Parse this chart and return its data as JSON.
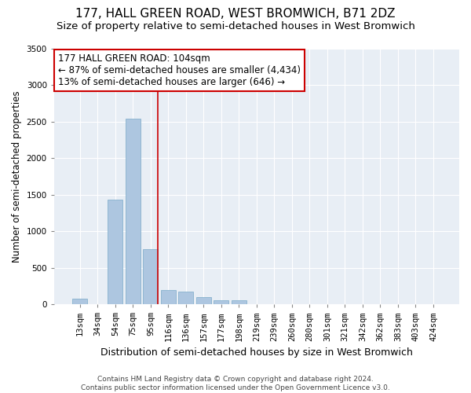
{
  "title": "177, HALL GREEN ROAD, WEST BROMWICH, B71 2DZ",
  "subtitle": "Size of property relative to semi-detached houses in West Bromwich",
  "xlabel": "Distribution of semi-detached houses by size in West Bromwich",
  "ylabel": "Number of semi-detached properties",
  "categories": [
    "13sqm",
    "34sqm",
    "54sqm",
    "75sqm",
    "95sqm",
    "116sqm",
    "136sqm",
    "157sqm",
    "177sqm",
    "198sqm",
    "219sqm",
    "239sqm",
    "260sqm",
    "280sqm",
    "301sqm",
    "321sqm",
    "342sqm",
    "362sqm",
    "383sqm",
    "403sqm",
    "424sqm"
  ],
  "values": [
    80,
    0,
    1430,
    2540,
    750,
    200,
    170,
    100,
    55,
    50,
    0,
    0,
    0,
    0,
    0,
    0,
    0,
    0,
    0,
    0,
    0
  ],
  "bar_color": "#adc6e0",
  "bar_edge_color": "#7aaac8",
  "vline_color": "#cc0000",
  "vline_pos": 4.42,
  "annotation_text": "177 HALL GREEN ROAD: 104sqm\n← 87% of semi-detached houses are smaller (4,434)\n13% of semi-detached houses are larger (646) →",
  "annotation_box_facecolor": "white",
  "annotation_box_edgecolor": "#cc0000",
  "ylim": [
    0,
    3500
  ],
  "yticks": [
    0,
    500,
    1000,
    1500,
    2000,
    2500,
    3000,
    3500
  ],
  "footer_line1": "Contains HM Land Registry data © Crown copyright and database right 2024.",
  "footer_line2": "Contains public sector information licensed under the Open Government Licence v3.0.",
  "plot_bg_color": "#e8eef5",
  "title_fontsize": 11,
  "subtitle_fontsize": 9.5,
  "xlabel_fontsize": 9,
  "ylabel_fontsize": 8.5,
  "tick_fontsize": 7.5,
  "annotation_fontsize": 8.5,
  "footer_fontsize": 6.5
}
